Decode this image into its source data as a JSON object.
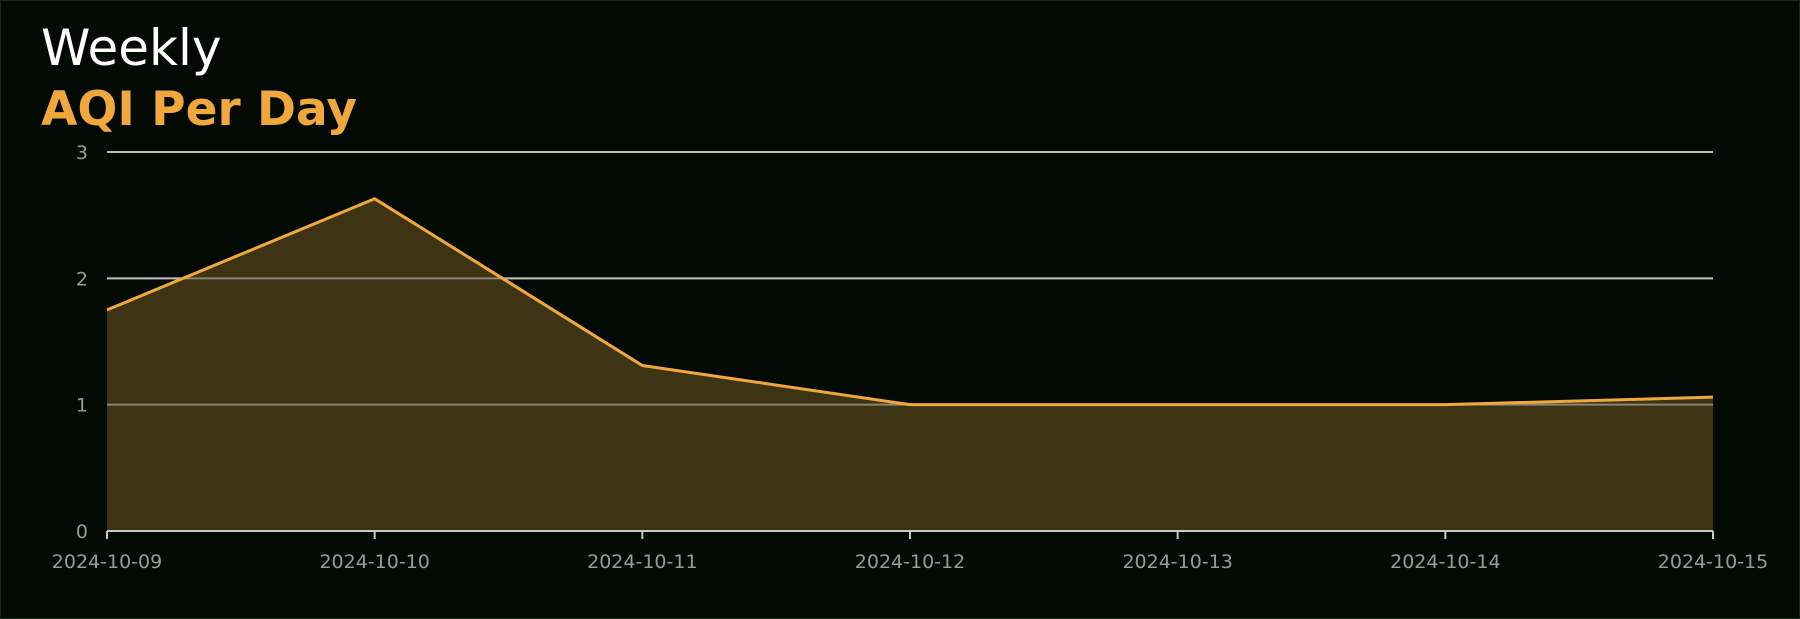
{
  "header": {
    "line1": "Weekly",
    "line2": "AQI Per Day"
  },
  "colors": {
    "background": "#030a04",
    "accent": "#f0a83c",
    "area_fill": "#3e3414",
    "grid": "#c8c8c8",
    "tick_text": "#9a9a9a",
    "title_text": "#ffffff"
  },
  "chart_data": {
    "type": "area",
    "x": [
      "2024-10-09",
      "2024-10-10",
      "2024-10-11",
      "2024-10-12",
      "2024-10-13",
      "2024-10-14",
      "2024-10-15"
    ],
    "series": [
      {
        "values": [
          1.75,
          2.63,
          1.31,
          1.0,
          1.0,
          1.0,
          1.06
        ]
      }
    ],
    "y_ticks": [
      0,
      1,
      2,
      3
    ],
    "ylim": [
      0,
      3
    ],
    "grid": "horizontal",
    "legend": "none"
  }
}
